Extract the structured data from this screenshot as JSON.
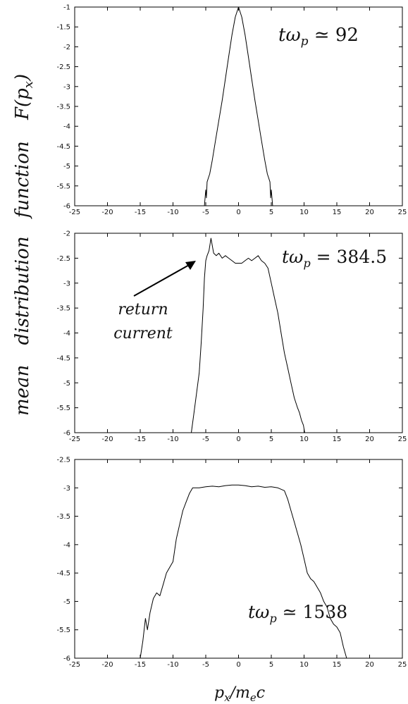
{
  "figure": {
    "ylabel_words": [
      "mean",
      "distribution",
      "function",
      "F(p",
      "x",
      ")"
    ],
    "xlabel_parts": [
      "p",
      "x",
      "/m",
      "e",
      "c"
    ]
  },
  "chart_data": [
    {
      "type": "line",
      "annotation": {
        "parts": [
          "tω",
          "p",
          " ≃ 92"
        ]
      },
      "xlim": [
        -25,
        25
      ],
      "ylim": [
        -6,
        -1
      ],
      "xticks": [
        -25,
        -20,
        -15,
        -10,
        -5,
        0,
        5,
        10,
        15,
        20,
        25
      ],
      "yticks": [
        -6,
        -5.5,
        -5,
        -4.5,
        -4,
        -3.5,
        -3,
        -2.5,
        -2,
        -1.5,
        -1
      ],
      "x": [
        -5.2,
        -5.0,
        -4.9,
        -4.8,
        -4.6,
        -4.4,
        -4.0,
        -3.5,
        -3.0,
        -2.5,
        -2.0,
        -1.5,
        -1.0,
        -0.5,
        0.0,
        0.5,
        1.0,
        1.5,
        2.0,
        2.5,
        3.0,
        3.5,
        4.0,
        4.4,
        4.6,
        4.8,
        4.9,
        5.0,
        5.2
      ],
      "y": [
        -6.0,
        -5.6,
        -5.8,
        -5.4,
        -5.3,
        -5.2,
        -4.85,
        -4.35,
        -3.85,
        -3.35,
        -2.8,
        -2.25,
        -1.7,
        -1.25,
        -1.0,
        -1.25,
        -1.7,
        -2.25,
        -2.8,
        -3.35,
        -3.85,
        -4.35,
        -4.85,
        -5.2,
        -5.3,
        -5.4,
        -5.8,
        -5.6,
        -6.0
      ]
    },
    {
      "type": "line",
      "annotation": {
        "parts": [
          "tω",
          "p",
          " = 384.5"
        ]
      },
      "callout": [
        "return",
        "current"
      ],
      "xlim": [
        -25,
        25
      ],
      "ylim": [
        -6,
        -2
      ],
      "xticks": [
        -25,
        -20,
        -15,
        -10,
        -5,
        0,
        5,
        10,
        15,
        20,
        25
      ],
      "yticks": [
        -6,
        -5.5,
        -5,
        -4.5,
        -4,
        -3.5,
        -3,
        -2.5,
        -2
      ],
      "x": [
        -7.2,
        -6.8,
        -6.4,
        -6.0,
        -5.7,
        -5.4,
        -5.2,
        -5.0,
        -4.8,
        -4.5,
        -4.2,
        -3.8,
        -3.4,
        -3.0,
        -2.5,
        -2.0,
        -1.5,
        -1.0,
        -0.5,
        0.0,
        0.5,
        1.0,
        1.5,
        2.0,
        2.5,
        3.0,
        3.5,
        4.0,
        4.5,
        5.0,
        5.5,
        6.0,
        6.5,
        7.0,
        7.5,
        8.0,
        8.5,
        9.0,
        9.3,
        9.6,
        9.9,
        10.1
      ],
      "y": [
        -6.0,
        -5.6,
        -5.2,
        -4.8,
        -4.2,
        -3.5,
        -2.9,
        -2.55,
        -2.45,
        -2.35,
        -2.1,
        -2.4,
        -2.45,
        -2.4,
        -2.5,
        -2.45,
        -2.5,
        -2.55,
        -2.6,
        -2.6,
        -2.6,
        -2.55,
        -2.5,
        -2.55,
        -2.5,
        -2.45,
        -2.55,
        -2.6,
        -2.7,
        -3.0,
        -3.3,
        -3.6,
        -4.0,
        -4.4,
        -4.7,
        -5.0,
        -5.3,
        -5.5,
        -5.6,
        -5.75,
        -5.85,
        -6.0
      ]
    },
    {
      "type": "line",
      "annotation": {
        "parts": [
          "tω",
          "p",
          " ≃ 1538"
        ]
      },
      "xlim": [
        -25,
        25
      ],
      "ylim": [
        -6,
        -2.5
      ],
      "xticks": [
        -25,
        -20,
        -15,
        -10,
        -5,
        0,
        5,
        10,
        15,
        20,
        25
      ],
      "yticks": [
        -6,
        -5.5,
        -5,
        -4.5,
        -4,
        -3.5,
        -3,
        -2.5
      ],
      "x": [
        -15.0,
        -14.6,
        -14.2,
        -13.9,
        -13.5,
        -13.0,
        -12.5,
        -12.0,
        -11.5,
        -11.0,
        -10.5,
        -10.0,
        -9.5,
        -9.0,
        -8.5,
        -8.0,
        -7.5,
        -7.0,
        -6.0,
        -5.0,
        -4.0,
        -3.0,
        -2.0,
        -1.0,
        0.0,
        1.0,
        2.0,
        3.0,
        4.0,
        5.0,
        6.0,
        7.0,
        7.5,
        8.0,
        8.5,
        9.0,
        9.5,
        10.0,
        10.5,
        11.0,
        11.5,
        12.0,
        12.5,
        13.0,
        13.5,
        14.0,
        14.5,
        15.0,
        15.5,
        16.0,
        16.5
      ],
      "y": [
        -6.0,
        -5.7,
        -5.3,
        -5.5,
        -5.2,
        -4.95,
        -4.85,
        -4.9,
        -4.7,
        -4.5,
        -4.4,
        -4.3,
        -3.9,
        -3.65,
        -3.4,
        -3.25,
        -3.1,
        -3.0,
        -3.0,
        -2.98,
        -2.97,
        -2.98,
        -2.96,
        -2.95,
        -2.95,
        -2.96,
        -2.98,
        -2.97,
        -2.99,
        -2.98,
        -3.0,
        -3.05,
        -3.2,
        -3.4,
        -3.6,
        -3.8,
        -4.0,
        -4.25,
        -4.5,
        -4.6,
        -4.65,
        -4.75,
        -4.85,
        -5.0,
        -5.1,
        -5.3,
        -5.4,
        -5.45,
        -5.55,
        -5.8,
        -6.0
      ]
    }
  ]
}
